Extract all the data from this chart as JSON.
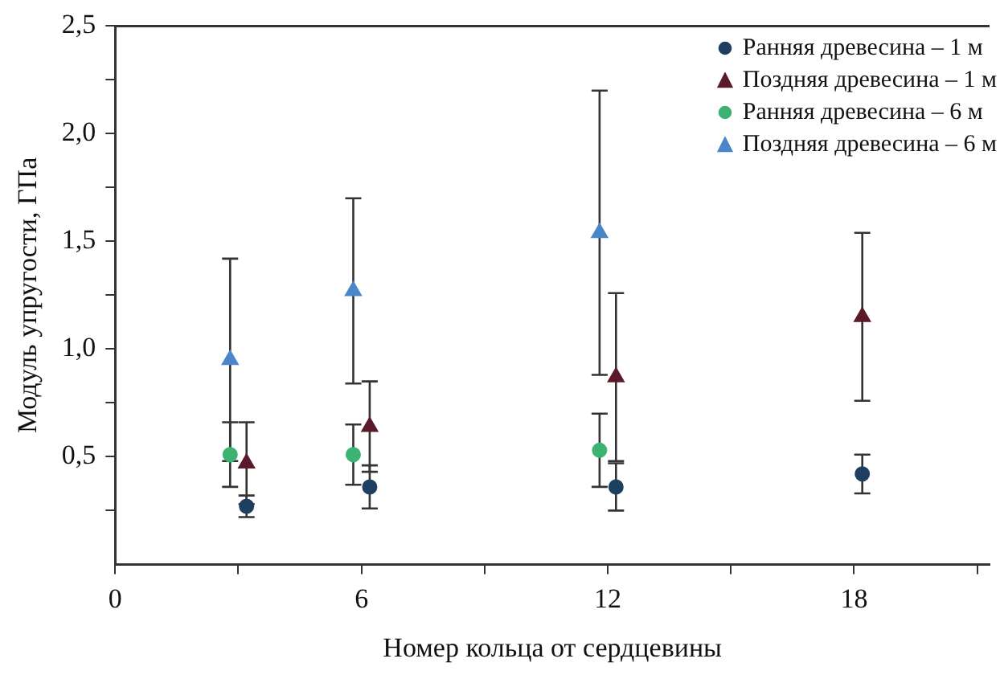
{
  "chart_data": {
    "type": "scatter",
    "xlabel": "Номер кольца от сердцевины",
    "ylabel": "Модуль упругости, ГПа",
    "xlim": [
      0,
      21.3
    ],
    "xticks": [
      0,
      {
        "value": 3,
        "label": null
      },
      6,
      {
        "value": 9,
        "label": null
      },
      12,
      {
        "value": 15,
        "label": null
      },
      18,
      {
        "value": 21,
        "label": null
      }
    ],
    "ylim": [
      0,
      2.5
    ],
    "yticks": [
      {
        "value": 0.25,
        "label": null
      },
      {
        "value": 0.5,
        "label": "0,5"
      },
      {
        "value": 0.75,
        "label": null
      },
      {
        "value": 1.0,
        "label": "1,0"
      },
      {
        "value": 1.25,
        "label": null
      },
      {
        "value": 1.5,
        "label": "1,5"
      },
      {
        "value": 1.75,
        "label": null
      },
      {
        "value": 2.0,
        "label": "2,0"
      },
      {
        "value": 2.25,
        "label": null
      },
      {
        "value": 2.5,
        "label": "2,5"
      }
    ],
    "grid": false,
    "legend": "top right",
    "series": [
      {
        "name": "Ранняя древесина – 1 м",
        "color": "#1f3f60",
        "marker": "circle",
        "x": [
          3.2,
          6.2,
          12.2,
          18.2
        ],
        "values": [
          0.27,
          0.36,
          0.36,
          0.42
        ],
        "errors": [
          0.05,
          0.1,
          0.11,
          0.09
        ]
      },
      {
        "name": "Поздняя древесина – 1 м",
        "color": "#5a1a2a",
        "marker": "triangle",
        "x": [
          3.2,
          6.2,
          12.2,
          18.2
        ],
        "values": [
          0.47,
          0.64,
          0.87,
          1.15
        ],
        "errors": [
          0.19,
          0.21,
          0.39,
          0.39
        ]
      },
      {
        "name": "Ранняя древесина – 6 м",
        "color": "#3cb371",
        "marker": "circle",
        "x": [
          2.8,
          5.8,
          11.8
        ],
        "values": [
          0.51,
          0.51,
          0.53
        ],
        "errors": [
          0.15,
          0.14,
          0.17
        ]
      },
      {
        "name": "Поздняя древесина – 6 м",
        "color": "#4a86c8",
        "marker": "triangle",
        "x": [
          2.8,
          5.8,
          11.8
        ],
        "values": [
          0.95,
          1.27,
          1.54
        ],
        "errors": [
          0.47,
          0.43,
          0.66
        ]
      }
    ]
  }
}
